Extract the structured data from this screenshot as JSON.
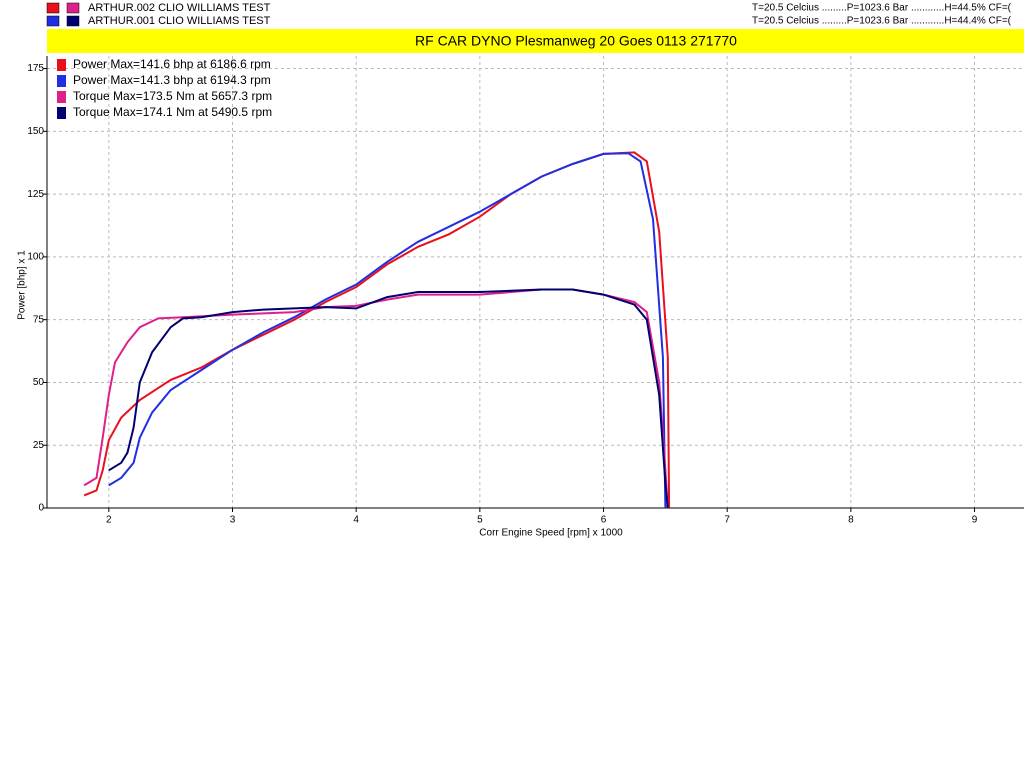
{
  "chart_data": {
    "type": "line",
    "title": "RF CAR DYNO  Plesmanweg 20 Goes  0113 271770",
    "runs": [
      "ARTHUR.002 CLIO WILLIAMS   TEST",
      "ARTHUR.001 CLIO WILLIAMS   TEST"
    ],
    "conditions": [
      "T=20.5 Celcius .........P=1023.6 Bar ............H=44.5% CF=(",
      "T=20.5 Celcius .........P=1023.6 Bar ............H=44.4% CF=("
    ],
    "x_label": "Corr Engine Speed [rpm] x 1000",
    "y_label": "Power [bhp] x 1",
    "xlim": [
      1.5,
      9.4
    ],
    "ylim": [
      0,
      180
    ],
    "xticks": [
      2,
      3,
      4,
      5,
      6,
      7,
      8,
      9
    ],
    "yticks": [
      0,
      25,
      50,
      75,
      100,
      125,
      150,
      175
    ],
    "grid": true,
    "series": [
      {
        "name": "Power  Max=141.6 bhp at 6186.6 rpm",
        "color": "#e8101c",
        "x": [
          1.8,
          1.9,
          1.95,
          2.0,
          2.1,
          2.25,
          2.5,
          2.75,
          3.0,
          3.25,
          3.5,
          3.75,
          4.0,
          4.25,
          4.5,
          4.75,
          5.0,
          5.25,
          5.5,
          5.75,
          6.0,
          6.25,
          6.35,
          6.45,
          6.52,
          6.53
        ],
        "values": [
          5,
          7,
          15,
          27,
          36,
          43,
          51,
          56,
          63,
          69,
          75,
          82,
          88,
          97,
          104,
          109,
          116,
          125,
          132,
          137,
          141,
          141.6,
          138,
          110,
          60,
          0
        ]
      },
      {
        "name": "Power  Max=141.3 bhp at 6194.3 rpm",
        "color": "#2030e0",
        "x": [
          2.0,
          2.1,
          2.2,
          2.25,
          2.35,
          2.5,
          2.75,
          3.0,
          3.25,
          3.5,
          3.75,
          4.0,
          4.25,
          4.5,
          4.75,
          5.0,
          5.25,
          5.5,
          5.75,
          6.0,
          6.2,
          6.3,
          6.4,
          6.48,
          6.5
        ],
        "values": [
          9,
          12,
          18,
          28,
          38,
          47,
          55,
          63,
          70,
          76,
          83,
          89,
          98,
          106,
          112,
          118,
          125,
          132,
          137,
          141,
          141.3,
          138,
          115,
          60,
          0
        ]
      },
      {
        "name": "Torque  Max=173.5 Nm at 5657.3 rpm",
        "color": "#e0208a",
        "x": [
          1.8,
          1.9,
          1.95,
          2.0,
          2.05,
          2.15,
          2.25,
          2.4,
          2.6,
          3.0,
          3.5,
          3.75,
          4.0,
          4.25,
          4.5,
          5.0,
          5.5,
          5.75,
          6.0,
          6.25,
          6.35,
          6.45,
          6.5,
          6.52
        ],
        "values": [
          9,
          12,
          28,
          45,
          58,
          66,
          72,
          75.5,
          76,
          77,
          78,
          80,
          80.5,
          83,
          85,
          85,
          87,
          87,
          85,
          82,
          78,
          50,
          15,
          0
        ]
      },
      {
        "name": "Torque  Max=174.1 Nm at 5490.5 rpm",
        "color": "#000070",
        "x": [
          2.0,
          2.1,
          2.15,
          2.2,
          2.25,
          2.35,
          2.5,
          2.6,
          2.75,
          3.0,
          3.25,
          3.5,
          3.75,
          4.0,
          4.25,
          4.5,
          5.0,
          5.5,
          5.75,
          6.0,
          6.25,
          6.35,
          6.45,
          6.5,
          6.52
        ],
        "values": [
          15,
          18,
          22,
          32,
          50,
          62,
          72,
          75.5,
          76,
          78,
          79,
          79.5,
          80,
          79.5,
          84,
          86,
          86,
          87,
          87,
          85,
          81,
          75,
          45,
          10,
          0
        ]
      }
    ]
  }
}
